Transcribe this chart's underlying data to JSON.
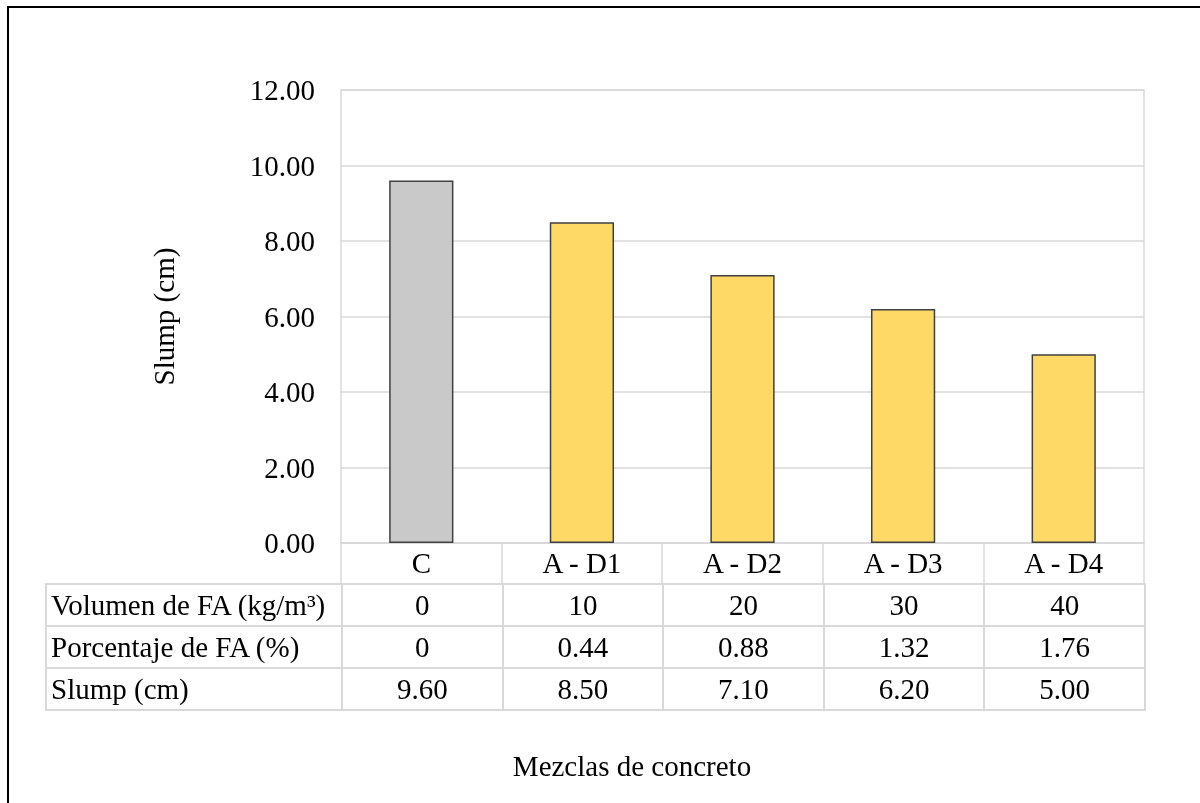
{
  "chart_data": {
    "type": "bar",
    "ylabel": "Slump (cm)",
    "categories": [
      "C",
      "A - D1",
      "A - D2",
      "A - D3",
      "A - D4"
    ],
    "series": [
      {
        "name": "Slump (cm)",
        "colors": [
          "#c9c9c9",
          "#ffd966",
          "#ffd966",
          "#ffd966",
          "#ffd966"
        ],
        "values": [
          9.6,
          8.5,
          7.1,
          6.2,
          5.0
        ],
        "value_labels": [
          "9.60",
          "8.50",
          "7.10",
          "6.20",
          "5.00"
        ]
      }
    ],
    "annotations": [
      "Volumen de FA (kg/m³)",
      "0",
      "10",
      "20",
      "30",
      "40",
      "Porcentaje de FA (%)",
      "0",
      "0.44",
      "0.88",
      "1.32",
      "1.76",
      "Mezclas de concreto"
    ],
    "ylim": [
      0,
      12
    ],
    "yticks": [
      {
        "value": 0,
        "label": "0.00"
      },
      {
        "value": 2,
        "label": "2.00"
      },
      {
        "value": 4,
        "label": "4.00"
      },
      {
        "value": 6,
        "label": "6.00"
      },
      {
        "value": 8,
        "label": "8.00"
      },
      {
        "value": 10,
        "label": "10.00"
      },
      {
        "value": 12,
        "label": "12.00"
      }
    ],
    "grid": "y"
  }
}
